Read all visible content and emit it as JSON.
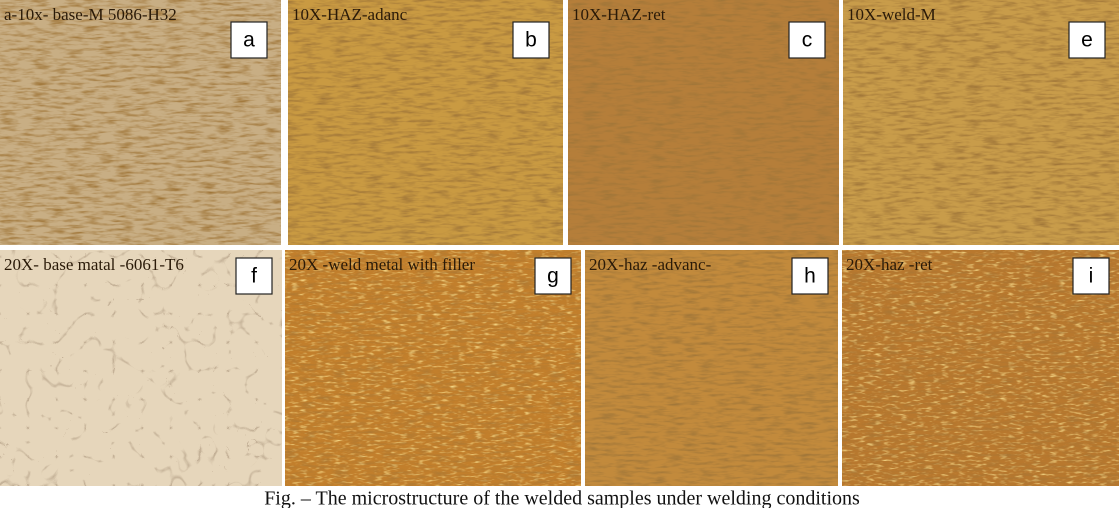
{
  "panels": [
    {
      "caption": "a-10x- base-M 5086-H32",
      "letter": "a"
    },
    {
      "caption": "10X-HAZ-adanc",
      "letter": "b"
    },
    {
      "caption": "10X-HAZ-ret",
      "letter": "c"
    },
    {
      "caption": "10X-weld-M",
      "letter": "e"
    },
    {
      "caption": "20X- base matal -6061-T6",
      "letter": "f"
    },
    {
      "caption": "20X -weld metal with filler",
      "letter": "g"
    },
    {
      "caption": "20X-haz -advanc-",
      "letter": "h"
    },
    {
      "caption": "20X-haz -ret",
      "letter": "i"
    }
  ],
  "figure_caption": "Fig. – The microstructure of the welded samples under welding conditions"
}
